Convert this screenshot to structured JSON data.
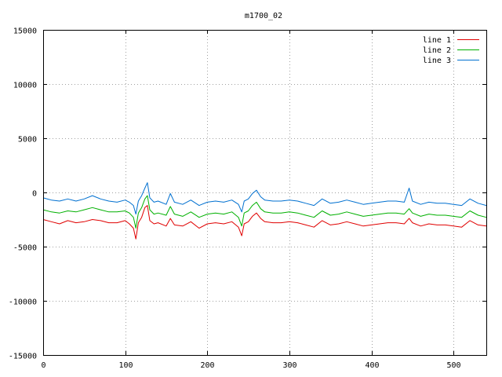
{
  "chart_data": {
    "type": "line",
    "title": "m1700_02",
    "xlabel": "",
    "ylabel": "",
    "xlim": [
      0,
      540
    ],
    "ylim": [
      -15000,
      15000
    ],
    "xticks": [
      0,
      100,
      200,
      300,
      400,
      500
    ],
    "yticks": [
      -15000,
      -10000,
      -5000,
      0,
      5000,
      10000,
      15000
    ],
    "grid": true,
    "legend_position": "top-right",
    "series": [
      {
        "name": "line 1",
        "color": "#e00000",
        "x": [
          0,
          10,
          20,
          30,
          40,
          50,
          60,
          70,
          80,
          90,
          100,
          105,
          110,
          113,
          116,
          120,
          124,
          127,
          130,
          135,
          140,
          150,
          155,
          160,
          170,
          180,
          190,
          200,
          210,
          220,
          230,
          238,
          242,
          245,
          250,
          255,
          260,
          265,
          270,
          280,
          290,
          300,
          310,
          320,
          330,
          340,
          350,
          360,
          370,
          380,
          390,
          400,
          410,
          420,
          430,
          440,
          446,
          450,
          460,
          470,
          480,
          490,
          500,
          510,
          520,
          530,
          540
        ],
        "y": [
          -2500,
          -2700,
          -2900,
          -2600,
          -2800,
          -2700,
          -2500,
          -2600,
          -2800,
          -2800,
          -2600,
          -2900,
          -3300,
          -4300,
          -2800,
          -2300,
          -1400,
          -1200,
          -2600,
          -2900,
          -2800,
          -3100,
          -2400,
          -3000,
          -3100,
          -2700,
          -3300,
          -2900,
          -2800,
          -2900,
          -2700,
          -3200,
          -4000,
          -2900,
          -2700,
          -2200,
          -1900,
          -2400,
          -2700,
          -2800,
          -2800,
          -2700,
          -2800,
          -3000,
          -3200,
          -2600,
          -3000,
          -2900,
          -2700,
          -2900,
          -3100,
          -3000,
          -2900,
          -2800,
          -2800,
          -2900,
          -2400,
          -2800,
          -3100,
          -2900,
          -3000,
          -3000,
          -3100,
          -3200,
          -2600,
          -3000,
          -3100
        ]
      },
      {
        "name": "line 2",
        "color": "#00b000",
        "x": [
          0,
          10,
          20,
          30,
          40,
          50,
          60,
          70,
          80,
          90,
          100,
          105,
          110,
          113,
          116,
          120,
          124,
          127,
          130,
          135,
          140,
          150,
          155,
          160,
          170,
          180,
          190,
          200,
          210,
          220,
          230,
          238,
          242,
          245,
          250,
          255,
          260,
          265,
          270,
          280,
          290,
          300,
          310,
          320,
          330,
          340,
          350,
          360,
          370,
          380,
          390,
          400,
          410,
          420,
          430,
          440,
          446,
          450,
          460,
          470,
          480,
          490,
          500,
          510,
          520,
          530,
          540
        ],
        "y": [
          -1600,
          -1800,
          -1900,
          -1700,
          -1800,
          -1600,
          -1400,
          -1600,
          -1800,
          -1800,
          -1700,
          -1900,
          -2300,
          -3300,
          -1900,
          -1400,
          -600,
          -300,
          -1600,
          -2000,
          -1900,
          -2100,
          -1300,
          -2000,
          -2200,
          -1800,
          -2300,
          -2000,
          -1900,
          -2000,
          -1800,
          -2300,
          -3100,
          -1900,
          -1700,
          -1200,
          -900,
          -1500,
          -1800,
          -1900,
          -1900,
          -1800,
          -1900,
          -2100,
          -2300,
          -1700,
          -2100,
          -2000,
          -1800,
          -2000,
          -2200,
          -2100,
          -2000,
          -1900,
          -1900,
          -2000,
          -1500,
          -1900,
          -2200,
          -2000,
          -2100,
          -2100,
          -2200,
          -2300,
          -1700,
          -2100,
          -2300
        ]
      },
      {
        "name": "line 3",
        "color": "#0070d0",
        "x": [
          0,
          10,
          20,
          30,
          40,
          50,
          60,
          70,
          80,
          90,
          100,
          105,
          110,
          113,
          116,
          120,
          124,
          127,
          130,
          135,
          140,
          150,
          155,
          160,
          170,
          180,
          190,
          200,
          210,
          220,
          230,
          238,
          242,
          245,
          250,
          255,
          260,
          265,
          270,
          280,
          290,
          300,
          310,
          320,
          330,
          340,
          350,
          360,
          370,
          380,
          390,
          400,
          410,
          420,
          430,
          440,
          446,
          450,
          460,
          470,
          480,
          490,
          500,
          510,
          520,
          530,
          540
        ],
        "y": [
          -500,
          -700,
          -800,
          -600,
          -800,
          -600,
          -300,
          -600,
          -800,
          -900,
          -700,
          -900,
          -1200,
          -2000,
          -800,
          -300,
          400,
          900,
          -500,
          -900,
          -800,
          -1100,
          -100,
          -900,
          -1100,
          -700,
          -1200,
          -900,
          -800,
          -900,
          -700,
          -1100,
          -1800,
          -800,
          -600,
          -100,
          200,
          -400,
          -700,
          -800,
          -800,
          -700,
          -800,
          -1000,
          -1200,
          -600,
          -1000,
          -900,
          -700,
          -900,
          -1100,
          -1000,
          -900,
          -800,
          -800,
          -900,
          400,
          -800,
          -1100,
          -900,
          -1000,
          -1000,
          -1100,
          -1200,
          -600,
          -1000,
          -1200
        ]
      }
    ]
  }
}
